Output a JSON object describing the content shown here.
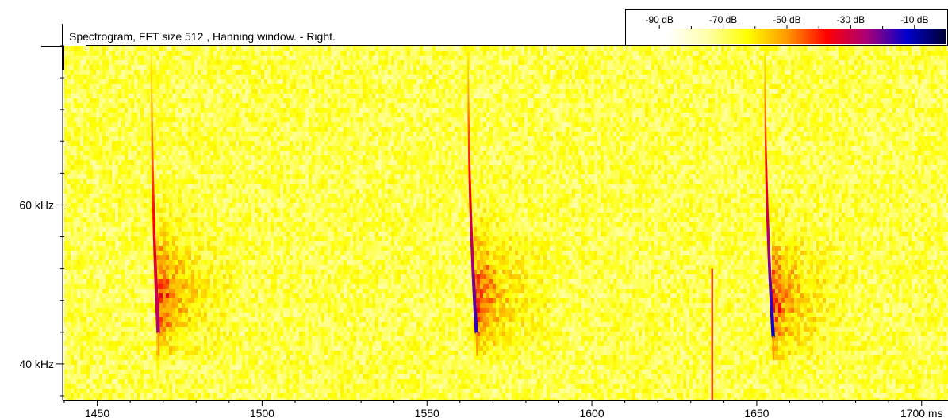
{
  "chart_data": {
    "type": "heatmap",
    "title": "Spectrogram, FFT size 512 , Hanning window. - Right.",
    "xlabel": "",
    "ylabel": "",
    "x_unit": "ms",
    "y_unit": "kHz",
    "xlim": [
      1440,
      1708
    ],
    "ylim": [
      35.5,
      80
    ],
    "x_ticks": [
      {
        "value": 1450,
        "label": "1450"
      },
      {
        "value": 1500,
        "label": "1500"
      },
      {
        "value": 1550,
        "label": "1550"
      },
      {
        "value": 1600,
        "label": "1600"
      },
      {
        "value": 1650,
        "label": "1650"
      },
      {
        "value": 1700,
        "label": "1700 ms"
      }
    ],
    "y_ticks": [
      {
        "value": 60,
        "label": "60 kHz"
      },
      {
        "value": 40,
        "label": "40 kHz"
      }
    ],
    "colorbar": {
      "labels": [
        "-90 dB",
        "-70 dB",
        "-50 dB",
        "-30 dB",
        "-10 dB"
      ],
      "values_db": [
        -90,
        -70,
        -50,
        -30,
        -10
      ],
      "colors": [
        "#ffffff",
        "#ffffff",
        "#ffffaa",
        "#ffff00",
        "#ff9900",
        "#ff0000",
        "#aa0077",
        "#0000cc",
        "#000033"
      ]
    },
    "background_level_db": -70,
    "calls": [
      {
        "start_ms": 1466.5,
        "end_ms": 1468.5,
        "start_khz": 80,
        "end_khz": 44,
        "peak_db": -25
      },
      {
        "start_ms": 1562.5,
        "end_ms": 1565.0,
        "start_khz": 80,
        "end_khz": 44,
        "peak_db": -15
      },
      {
        "start_ms": 1652.5,
        "end_ms": 1655.0,
        "start_khz": 80,
        "end_khz": 43.5,
        "peak_db": -12
      }
    ],
    "transient": {
      "time_ms": 1636.5,
      "from_khz": 35.5,
      "to_khz": 52,
      "peak_db": -40
    }
  }
}
